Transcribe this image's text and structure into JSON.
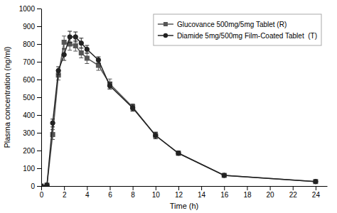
{
  "chart_data": {
    "type": "line",
    "xlabel": "Time (h)",
    "ylabel": "Plasma concentration (ng/ml)",
    "x": [
      0,
      0.5,
      1.0,
      1.5,
      2.0,
      2.5,
      3.0,
      3.5,
      4.0,
      5.0,
      6.0,
      8.0,
      10.0,
      12.0,
      16.0,
      24.0
    ],
    "series": [
      {
        "name": "Glucovance 500mg/5mg Tablet (R)",
        "color": "#555555",
        "marker": "square",
        "values": [
          0,
          5,
          290,
          625,
          810,
          800,
          790,
          750,
          720,
          680,
          575,
          445,
          285,
          185,
          60,
          25
        ],
        "yerr": [
          0,
          3,
          28,
          28,
          35,
          35,
          30,
          28,
          30,
          28,
          28,
          18,
          18,
          12,
          8,
          4
        ]
      },
      {
        "name": "Diamide 5mg/500mg Film-Coated Tablet  (T)",
        "color": "#222222",
        "marker": "circle",
        "values": [
          0,
          5,
          355,
          650,
          740,
          840,
          840,
          805,
          770,
          710,
          565,
          440,
          285,
          185,
          60,
          25
        ],
        "yerr": [
          0,
          3,
          22,
          22,
          32,
          32,
          28,
          28,
          22,
          18,
          18,
          18,
          18,
          10,
          8,
          4
        ]
      }
    ],
    "xlim": [
      0,
      25
    ],
    "ylim": [
      0,
      1000
    ],
    "xticks": [
      0,
      2,
      4,
      6,
      8,
      10,
      12,
      14,
      16,
      18,
      20,
      22,
      24
    ],
    "yticks": [
      0,
      100,
      200,
      300,
      400,
      500,
      600,
      700,
      800,
      900,
      1000
    ],
    "grid": false,
    "legend": "upper right"
  }
}
